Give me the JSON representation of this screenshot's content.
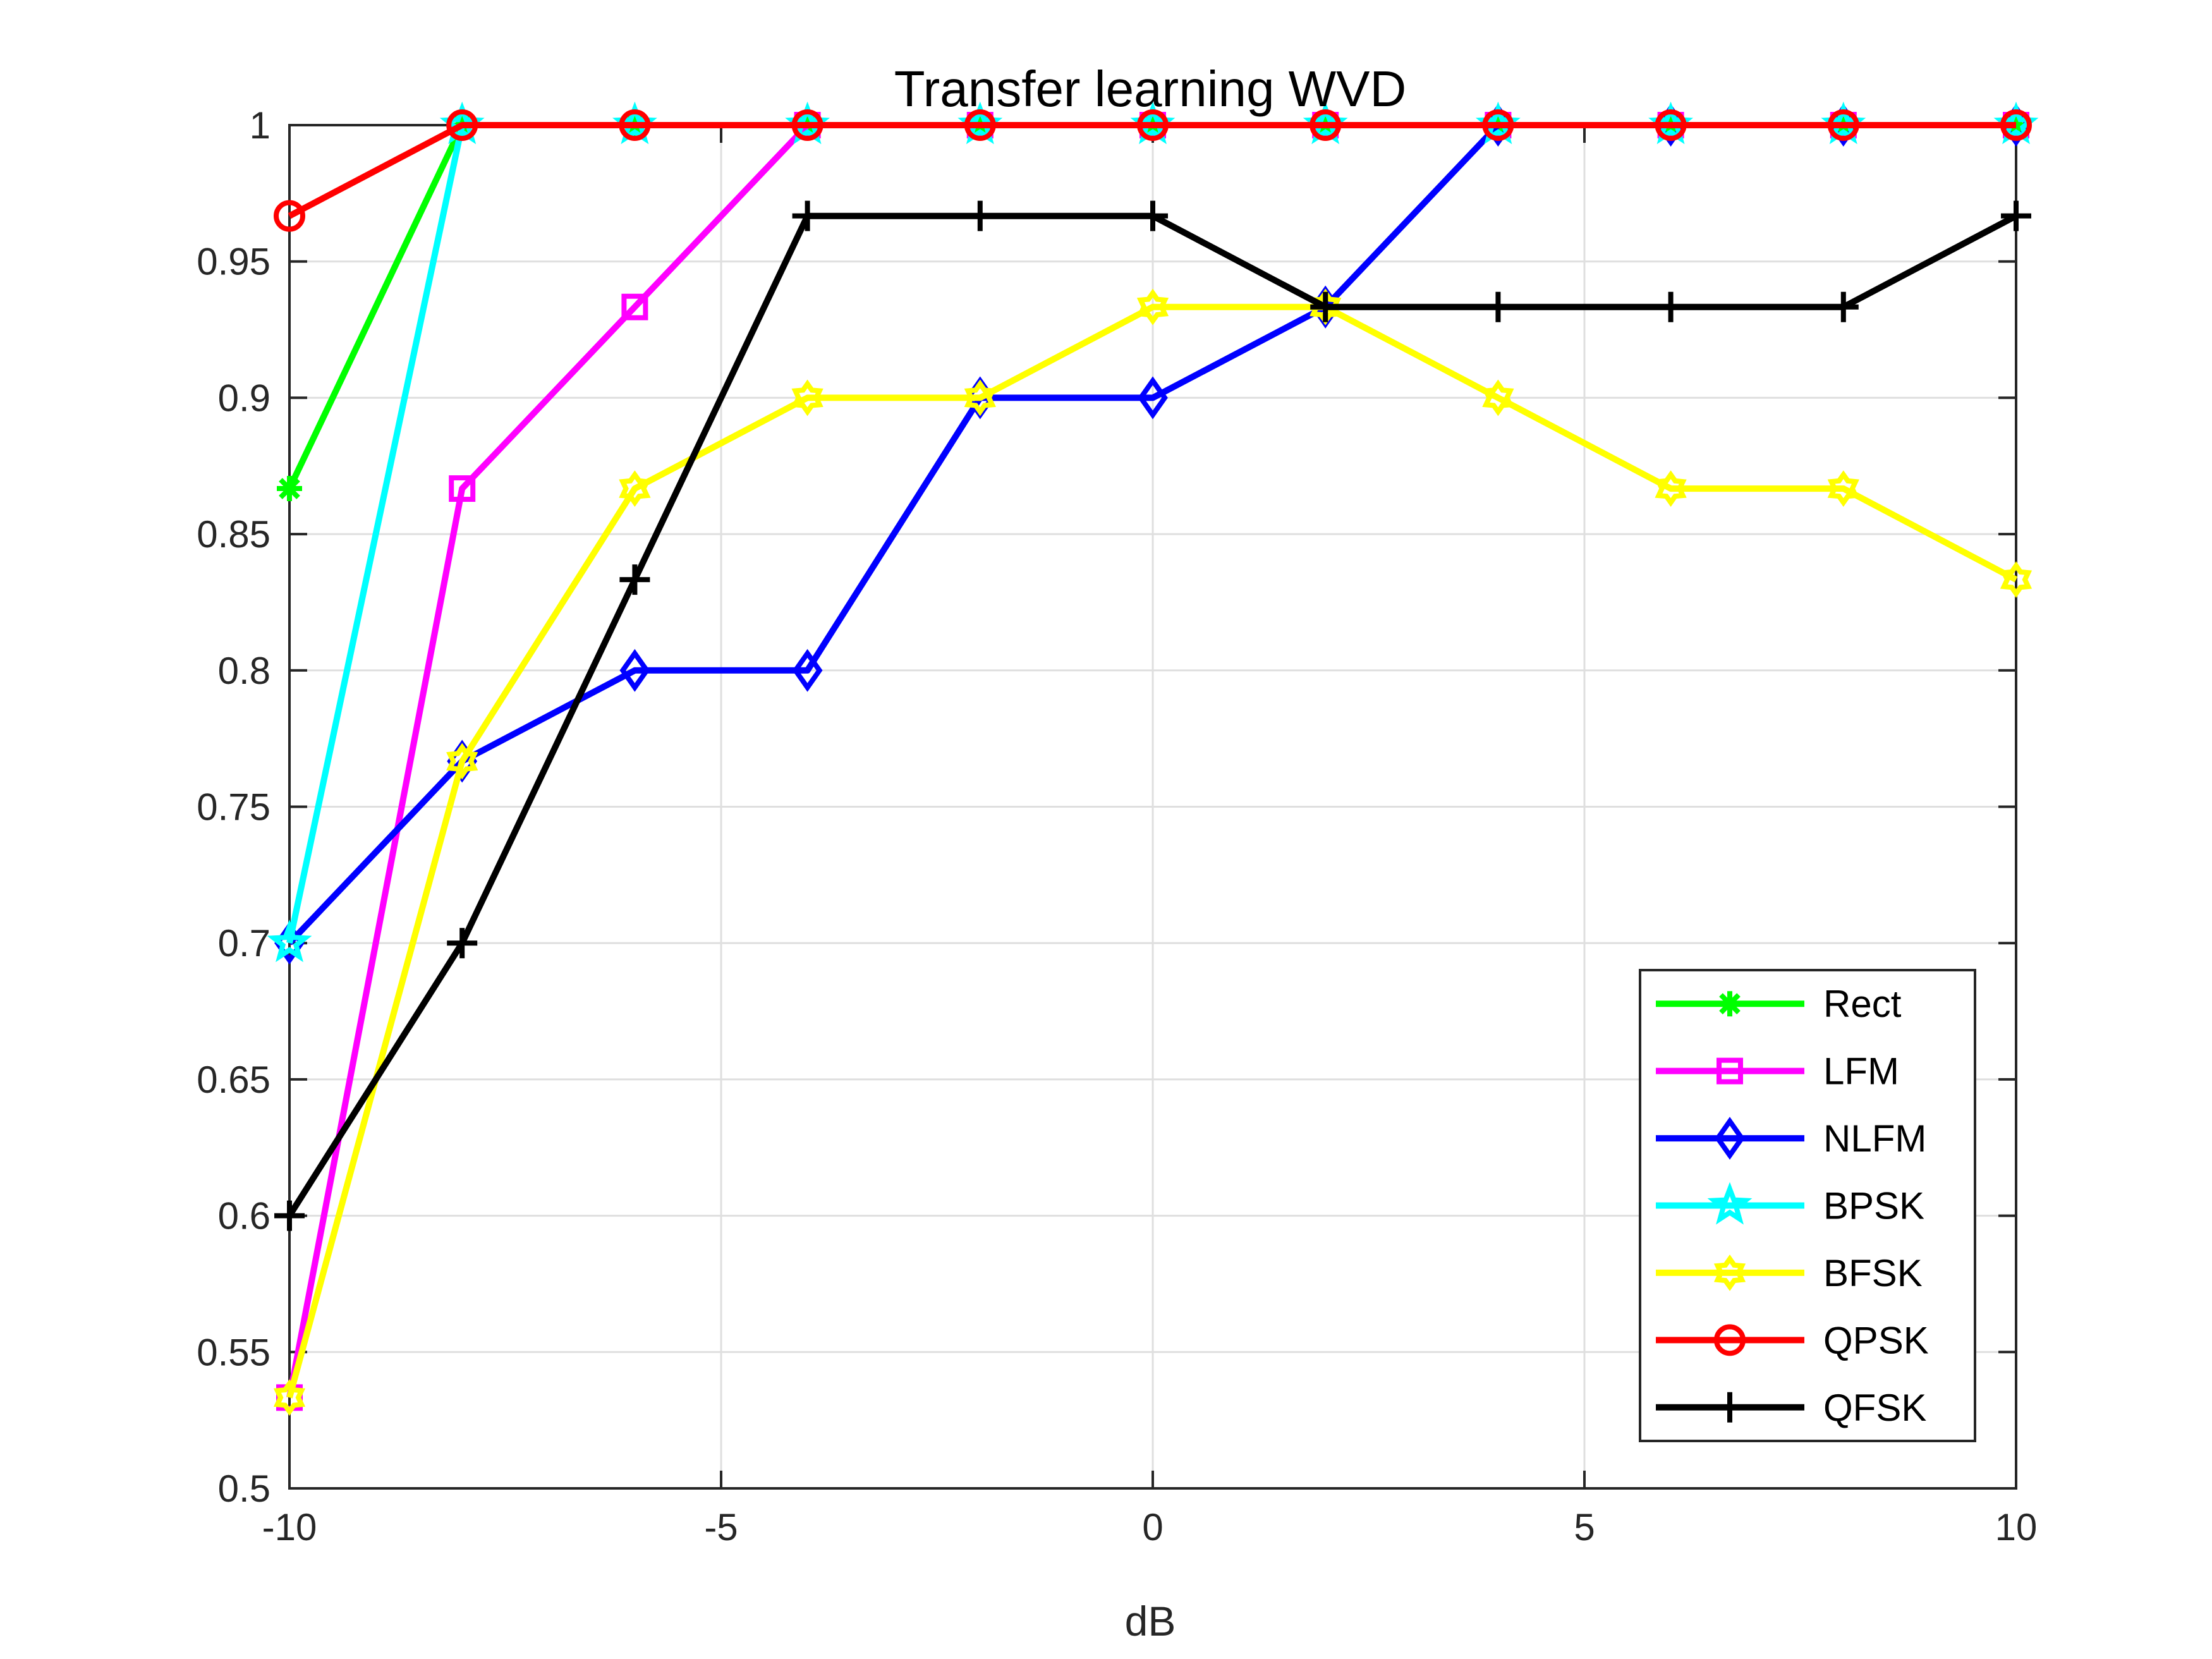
{
  "chart_data": {
    "type": "line",
    "title": "Transfer learning WVD",
    "xlabel": "dB",
    "ylabel": "",
    "xlim": [
      -10,
      10
    ],
    "ylim": [
      0.5,
      1
    ],
    "x": [
      -10,
      -8,
      -6,
      -4,
      -2,
      0,
      2,
      4,
      6,
      8,
      10
    ],
    "xticks": [
      -10,
      -5,
      0,
      5,
      10
    ],
    "xtick_labels": [
      "-10",
      "-5",
      "0",
      "5",
      "10"
    ],
    "yticks": [
      0.5,
      0.55,
      0.6,
      0.65,
      0.7,
      0.75,
      0.8,
      0.85,
      0.9,
      0.95,
      1
    ],
    "ytick_labels": [
      "0.5",
      "0.55",
      "0.6",
      "0.65",
      "0.7",
      "0.75",
      "0.8",
      "0.85",
      "0.9",
      "0.95",
      "1"
    ],
    "grid": true,
    "legend_position": "bottom-right",
    "series": [
      {
        "name": "Rect",
        "color": "#00ff00",
        "marker": "asterisk",
        "values": [
          0.8667,
          1,
          1,
          1,
          1,
          1,
          1,
          1,
          1,
          1,
          1
        ]
      },
      {
        "name": "LFM",
        "color": "#ff00ff",
        "marker": "square",
        "values": [
          0.5333,
          0.8667,
          0.9333,
          1,
          1,
          1,
          1,
          1,
          1,
          1,
          1
        ]
      },
      {
        "name": "NLFM",
        "color": "#0000ff",
        "marker": "diamond",
        "values": [
          0.7,
          0.7667,
          0.8,
          0.8,
          0.9,
          0.9,
          0.9333,
          1,
          1,
          1,
          1
        ]
      },
      {
        "name": "BPSK",
        "color": "#00ffff",
        "marker": "pentagram",
        "values": [
          0.7,
          1,
          1,
          1,
          1,
          1,
          1,
          1,
          1,
          1,
          1
        ]
      },
      {
        "name": "BFSK",
        "color": "#ffff00",
        "marker": "hexagram",
        "values": [
          0.5333,
          0.7667,
          0.8667,
          0.9,
          0.9,
          0.9333,
          0.9333,
          0.9,
          0.8667,
          0.8667,
          0.8333
        ]
      },
      {
        "name": "QPSK",
        "color": "#ff0000",
        "marker": "circle",
        "values": [
          0.9667,
          1,
          1,
          1,
          1,
          1,
          1,
          1,
          1,
          1,
          1
        ]
      },
      {
        "name": "QFSK",
        "color": "#000000",
        "marker": "plus",
        "values": [
          0.6,
          0.7,
          0.8333,
          0.9667,
          0.9667,
          0.9667,
          0.9333,
          0.9333,
          0.9333,
          0.9333,
          0.9667
        ]
      }
    ]
  }
}
